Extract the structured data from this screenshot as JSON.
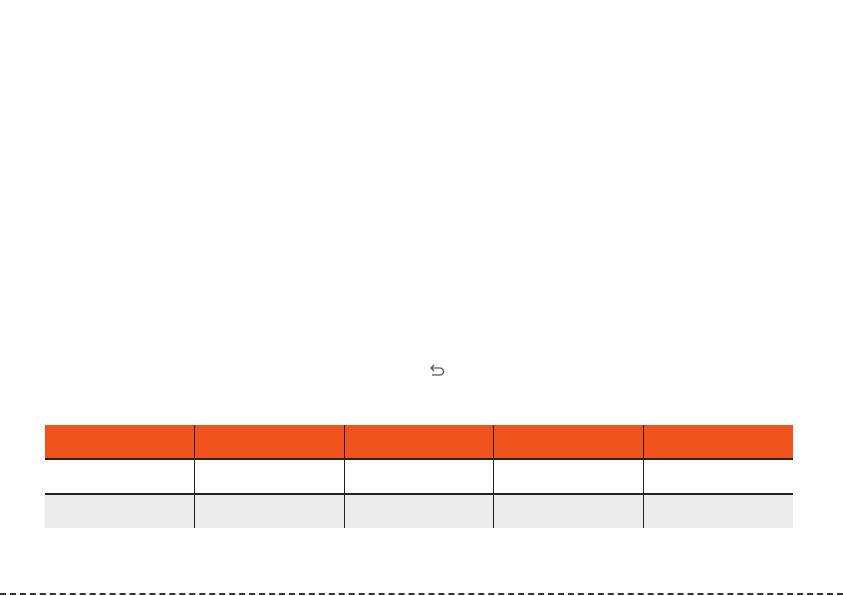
{
  "toolbar": {
    "undo_icon": "undo-arrow-icon"
  },
  "colors": {
    "header_bg": "#f1531d",
    "row_alt_bg": "#ebebeb",
    "border": "#222222"
  },
  "table": {
    "headers": [
      "",
      "",
      "",
      "",
      ""
    ],
    "rows": [
      [
        "",
        "",
        "",
        "",
        ""
      ],
      [
        "",
        "",
        "",
        "",
        ""
      ]
    ]
  }
}
